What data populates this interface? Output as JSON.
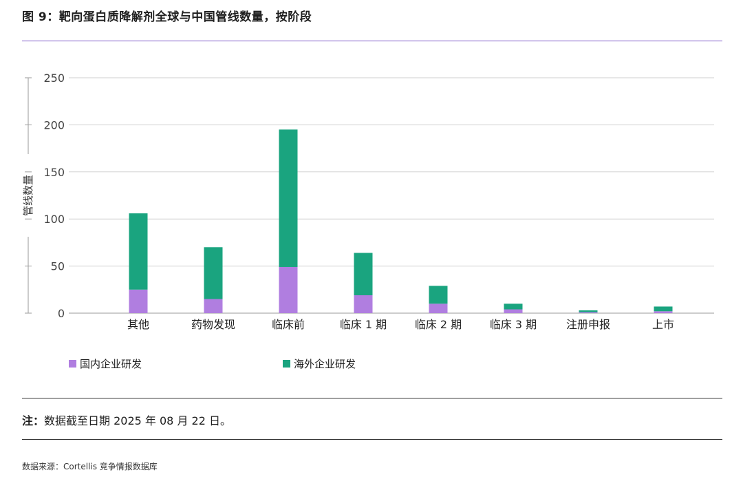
{
  "title": "图 9：靶向蛋白质降解剂全球与中国管线数量，按阶段",
  "note": {
    "label": "注：",
    "text": "数据截至日期 2025 年 08 月 22 日。"
  },
  "source": "数据来源：Cortellis 竞争情报数据库",
  "colors": {
    "domestic": "#b07ee0",
    "overseas": "#1aa47f",
    "rule": "#7b55c7"
  },
  "chart_data": {
    "type": "bar",
    "stacked": true,
    "title": "",
    "xlabel": "",
    "ylabel": "管线数量",
    "ylim": [
      0,
      250
    ],
    "yticks": [
      0,
      50,
      100,
      150,
      200,
      250
    ],
    "grid": true,
    "legend_position": "bottom-left",
    "categories": [
      "其他",
      "药物发现",
      "临床前",
      "临床 1 期",
      "临床 2 期",
      "临床 3 期",
      "注册申报",
      "上市"
    ],
    "series": [
      {
        "name": "国内企业研发",
        "values": [
          25,
          15,
          49,
          19,
          10,
          4,
          1,
          2
        ]
      },
      {
        "name": "海外企业研发",
        "values": [
          81,
          55,
          146,
          45,
          19,
          6,
          2,
          5
        ]
      }
    ]
  }
}
